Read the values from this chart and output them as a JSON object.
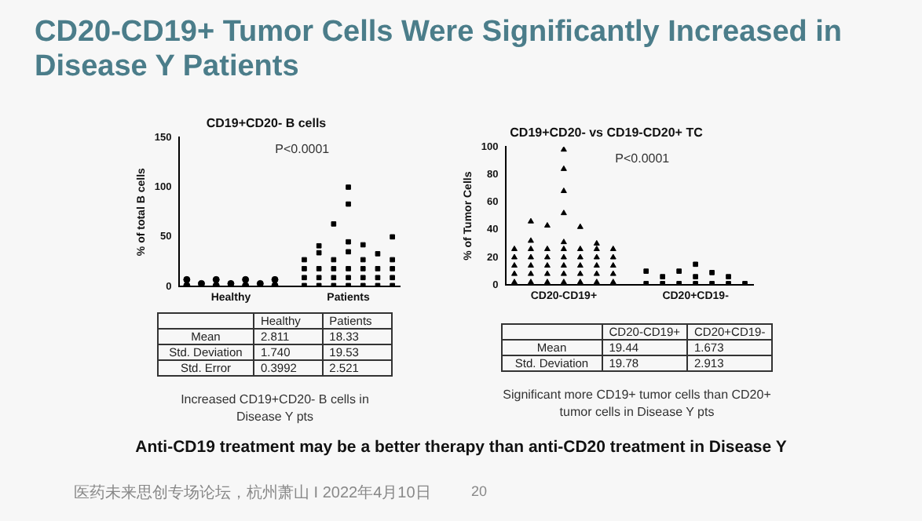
{
  "chart_data": [
    {
      "type": "scatter",
      "title": "CD19+CD20- B cells",
      "ylabel": "% of total B cells",
      "categories": [
        null,
        null,
        null,
        "Healthy",
        null,
        null,
        null,
        null,
        null,
        null,
        null,
        "Patients",
        null,
        null,
        null
      ],
      "ylim": [
        0,
        150
      ],
      "yticks": [
        0,
        50,
        100,
        150
      ],
      "grid": false,
      "legend": false,
      "series": [
        {
          "color": "#000000",
          "marker": "circle",
          "values": [
            1,
            3,
            1,
            3,
            1,
            3,
            1,
            null,
            null,
            null,
            null,
            null,
            null,
            null,
            null
          ]
        },
        {
          "color": "#000000",
          "marker": "circle",
          "values": [
            7,
            null,
            7,
            null,
            7,
            null,
            7,
            null,
            null,
            null,
            null,
            null,
            null,
            null,
            null
          ]
        },
        {
          "color": "#000000",
          "marker": "square",
          "values": [
            null,
            null,
            null,
            null,
            null,
            null,
            null,
            null,
            1,
            1,
            1,
            1,
            1,
            1,
            1
          ]
        },
        {
          "color": "#000000",
          "marker": "square",
          "values": [
            null,
            null,
            null,
            null,
            null,
            null,
            null,
            null,
            9,
            9,
            9,
            9,
            9,
            9,
            9
          ]
        },
        {
          "color": "#000000",
          "marker": "square",
          "values": [
            null,
            null,
            null,
            null,
            null,
            null,
            null,
            null,
            18,
            18,
            18,
            18,
            18,
            18,
            18
          ]
        },
        {
          "color": "#000000",
          "marker": "square",
          "values": [
            null,
            null,
            null,
            null,
            null,
            null,
            null,
            null,
            27,
            null,
            27,
            null,
            27,
            null,
            27
          ]
        },
        {
          "color": "#000000",
          "marker": "square",
          "values": [
            null,
            null,
            null,
            null,
            null,
            null,
            null,
            null,
            null,
            34,
            null,
            35,
            null,
            33,
            null
          ]
        },
        {
          "color": "#000000",
          "marker": "square",
          "values": [
            null,
            null,
            null,
            null,
            null,
            null,
            null,
            null,
            null,
            41,
            null,
            45,
            42,
            null,
            50
          ]
        },
        {
          "color": "#000000",
          "marker": "square",
          "values": [
            null,
            null,
            null,
            null,
            null,
            null,
            null,
            null,
            null,
            null,
            63,
            null,
            null,
            null,
            null
          ]
        },
        {
          "color": "#000000",
          "marker": "square",
          "values": [
            null,
            null,
            null,
            null,
            null,
            null,
            null,
            null,
            null,
            null,
            null,
            83,
            null,
            null,
            null
          ]
        },
        {
          "color": "#000000",
          "marker": "square",
          "values": [
            null,
            null,
            null,
            null,
            null,
            null,
            null,
            null,
            null,
            null,
            null,
            100,
            null,
            null,
            null
          ]
        }
      ],
      "annotations": [
        "P<0.0001",
        "\tHealthy\tPatients",
        "Mean\t2.811\t18.33",
        "Std. Deviation\t1.740\t19.53",
        "Std. Error\t0.3992\t2.521",
        "Increased CD19+CD20- B cells in Disease Y pts"
      ]
    },
    {
      "type": "scatter",
      "title": "CD19+CD20- vs CD19-CD20+ TC",
      "ylabel": "% of Tumor Cells",
      "categories": [
        null,
        null,
        null,
        "CD20-CD19+",
        null,
        null,
        null,
        null,
        null,
        null,
        null,
        "CD20+CD19-",
        null,
        null,
        null
      ],
      "ylim": [
        0,
        100
      ],
      "yticks": [
        0,
        20,
        40,
        60,
        80,
        100
      ],
      "grid": false,
      "legend": false,
      "series": [
        {
          "color": "#000000",
          "marker": "triangle",
          "values": [
            2,
            2,
            2,
            2,
            2,
            2,
            2,
            null,
            null,
            null,
            null,
            null,
            null,
            null,
            null
          ]
        },
        {
          "color": "#000000",
          "marker": "triangle",
          "values": [
            8,
            8,
            8,
            8,
            8,
            8,
            8,
            null,
            null,
            null,
            null,
            null,
            null,
            null,
            null
          ]
        },
        {
          "color": "#000000",
          "marker": "triangle",
          "values": [
            14,
            14,
            14,
            14,
            14,
            14,
            14,
            null,
            null,
            null,
            null,
            null,
            null,
            null,
            null
          ]
        },
        {
          "color": "#000000",
          "marker": "triangle",
          "values": [
            20,
            20,
            20,
            20,
            20,
            20,
            20,
            null,
            null,
            null,
            null,
            null,
            null,
            null,
            null
          ]
        },
        {
          "color": "#000000",
          "marker": "triangle",
          "values": [
            26,
            26,
            26,
            26,
            26,
            26,
            26,
            null,
            null,
            null,
            null,
            null,
            null,
            null,
            null
          ]
        },
        {
          "color": "#000000",
          "marker": "triangle",
          "values": [
            null,
            32,
            null,
            31,
            null,
            30,
            null,
            null,
            null,
            null,
            null,
            null,
            null,
            null,
            null
          ]
        },
        {
          "color": "#000000",
          "marker": "triangle",
          "values": [
            null,
            null,
            43,
            null,
            42,
            null,
            null,
            null,
            null,
            null,
            null,
            null,
            null,
            null,
            null
          ]
        },
        {
          "color": "#000000",
          "marker": "triangle",
          "values": [
            null,
            46,
            null,
            52,
            null,
            null,
            null,
            null,
            null,
            null,
            null,
            null,
            null,
            null,
            null
          ]
        },
        {
          "color": "#000000",
          "marker": "triangle",
          "values": [
            null,
            null,
            null,
            68,
            null,
            null,
            null,
            null,
            null,
            null,
            null,
            null,
            null,
            null,
            null
          ]
        },
        {
          "color": "#000000",
          "marker": "triangle",
          "values": [
            null,
            null,
            null,
            84,
            null,
            null,
            null,
            null,
            null,
            null,
            null,
            null,
            null,
            null,
            null
          ]
        },
        {
          "color": "#000000",
          "marker": "triangle",
          "values": [
            null,
            null,
            null,
            98,
            null,
            null,
            null,
            null,
            null,
            null,
            null,
            null,
            null,
            null,
            null
          ]
        },
        {
          "color": "#000000",
          "marker": "square",
          "values": [
            null,
            null,
            null,
            null,
            null,
            null,
            null,
            null,
            1,
            1,
            1,
            1,
            1,
            1,
            1
          ]
        },
        {
          "color": "#000000",
          "marker": "square",
          "values": [
            null,
            null,
            null,
            null,
            null,
            null,
            null,
            null,
            null,
            6,
            null,
            6,
            null,
            6,
            null
          ]
        },
        {
          "color": "#000000",
          "marker": "square",
          "values": [
            null,
            null,
            null,
            null,
            null,
            null,
            null,
            null,
            10,
            null,
            10,
            null,
            9,
            null,
            null
          ]
        },
        {
          "color": "#000000",
          "marker": "square",
          "values": [
            null,
            null,
            null,
            null,
            null,
            null,
            null,
            null,
            null,
            null,
            null,
            15,
            null,
            null,
            null
          ]
        }
      ],
      "annotations": [
        "P<0.0001",
        "\tCD20-CD19+\tCD20+CD19-",
        "Mean\t19.44\t1.673",
        "Std. Deviation\t19.78\t2.913",
        "Significant more CD19+ tumor cells  than CD20+ tumor cells in Disease Y pts"
      ]
    },
    {
      "type": "other",
      "title": "CD20-CD19+ Tumor Cells Were Significantly Increased in Disease Y Patients",
      "annotations": [
        "Anti-CD19 treatment may be a better therapy than anti-CD20 treatment in Disease Y",
        "医药未来思创专场论坛，杭州萧山 I 2022年4月10日",
        "20"
      ]
    }
  ]
}
